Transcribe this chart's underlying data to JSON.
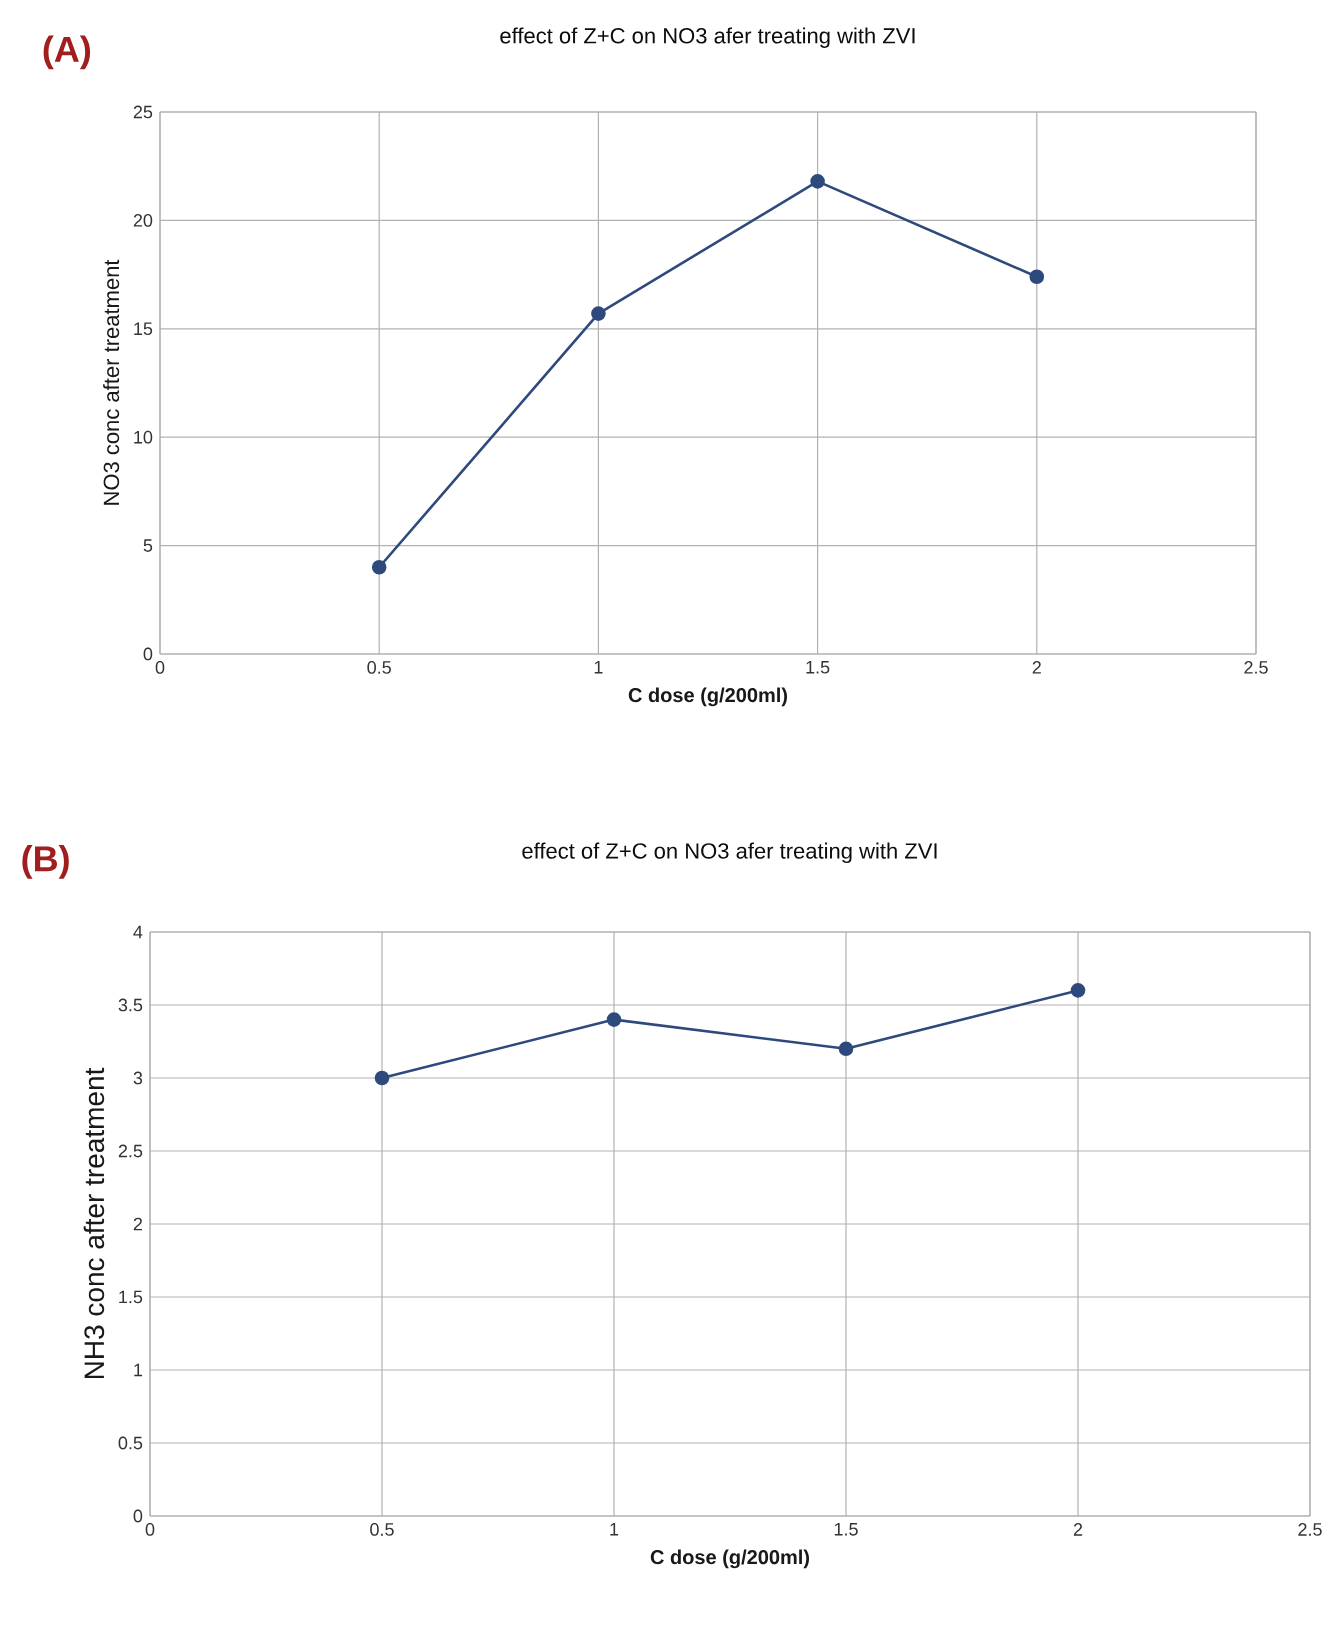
{
  "chart_data": [
    {
      "type": "line",
      "title": "effect of Z+C on NO3 afer treating with ZVI",
      "xlabel": "C dose (g/200ml)",
      "ylabel": "NO3 conc after treatment",
      "annotations": [
        "(A)"
      ],
      "x": [
        0.5,
        1,
        1.5,
        2
      ],
      "series": [
        {
          "color": "#2e4a7d",
          "values": [
            4,
            15.7,
            21.8,
            17.4
          ]
        }
      ],
      "xlim": [
        0,
        2.5
      ],
      "xticks": [
        0,
        0.5,
        1,
        1.5,
        2,
        2.5
      ],
      "ylim": [
        0,
        25
      ],
      "yticks": [
        0,
        5,
        10,
        15,
        20,
        25
      ],
      "grid": true,
      "marker": "circle",
      "line_style": "solid"
    },
    {
      "type": "line",
      "title": "effect of Z+C on NO3 afer treating with ZVI",
      "xlabel": "C dose (g/200ml)",
      "ylabel": "NH3 conc after treatment",
      "annotations": [
        "(B)"
      ],
      "x": [
        0.5,
        1,
        1.5,
        2
      ],
      "series": [
        {
          "color": "#2e4a7d",
          "values": [
            3,
            3.4,
            3.2,
            3.6
          ]
        }
      ],
      "xlim": [
        0,
        2.5
      ],
      "xticks": [
        0,
        0.5,
        1,
        1.5,
        2,
        2.5
      ],
      "ylim": [
        0,
        4
      ],
      "yticks": [
        0,
        0.5,
        1,
        1.5,
        2,
        2.5,
        3,
        3.5,
        4
      ],
      "grid": true,
      "marker": "circle",
      "line_style": "solid"
    }
  ]
}
